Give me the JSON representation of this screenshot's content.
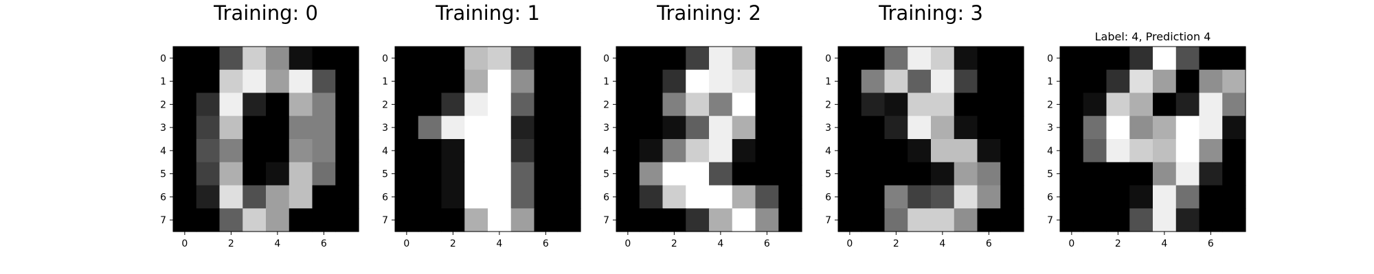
{
  "chart_data": [
    {
      "type": "heatmap",
      "title": "Training: 0",
      "colormap": "gray",
      "x_ticks": [
        0,
        2,
        4,
        6
      ],
      "y_ticks": [
        0,
        1,
        2,
        3,
        4,
        5,
        6,
        7
      ],
      "values": [
        [
          0,
          0,
          5,
          13,
          9,
          1,
          0,
          0
        ],
        [
          0,
          0,
          13,
          15,
          10,
          15,
          5,
          0
        ],
        [
          0,
          3,
          15,
          2,
          0,
          11,
          8,
          0
        ],
        [
          0,
          4,
          12,
          0,
          0,
          8,
          8,
          0
        ],
        [
          0,
          5,
          8,
          0,
          0,
          9,
          8,
          0
        ],
        [
          0,
          4,
          11,
          0,
          1,
          12,
          7,
          0
        ],
        [
          0,
          2,
          14,
          5,
          10,
          12,
          0,
          0
        ],
        [
          0,
          0,
          6,
          13,
          10,
          0,
          0,
          0
        ]
      ]
    },
    {
      "type": "heatmap",
      "title": "Training: 1",
      "colormap": "gray",
      "x_ticks": [
        0,
        2,
        4,
        6
      ],
      "y_ticks": [
        0,
        1,
        2,
        3,
        4,
        5,
        6,
        7
      ],
      "values": [
        [
          0,
          0,
          0,
          12,
          13,
          5,
          0,
          0
        ],
        [
          0,
          0,
          0,
          11,
          16,
          9,
          0,
          0
        ],
        [
          0,
          0,
          3,
          15,
          16,
          6,
          0,
          0
        ],
        [
          0,
          7,
          15,
          16,
          16,
          2,
          0,
          0
        ],
        [
          0,
          0,
          1,
          16,
          16,
          3,
          0,
          0
        ],
        [
          0,
          0,
          1,
          16,
          16,
          6,
          0,
          0
        ],
        [
          0,
          0,
          1,
          16,
          16,
          6,
          0,
          0
        ],
        [
          0,
          0,
          0,
          11,
          16,
          10,
          0,
          0
        ]
      ]
    },
    {
      "type": "heatmap",
      "title": "Training: 2",
      "colormap": "gray",
      "x_ticks": [
        0,
        2,
        4,
        6
      ],
      "y_ticks": [
        0,
        1,
        2,
        3,
        4,
        5,
        6,
        7
      ],
      "values": [
        [
          0,
          0,
          0,
          4,
          15,
          12,
          0,
          0
        ],
        [
          0,
          0,
          3,
          16,
          15,
          14,
          0,
          0
        ],
        [
          0,
          0,
          8,
          13,
          8,
          16,
          0,
          0
        ],
        [
          0,
          0,
          1,
          6,
          15,
          11,
          0,
          0
        ],
        [
          0,
          1,
          8,
          13,
          15,
          1,
          0,
          0
        ],
        [
          0,
          9,
          16,
          16,
          5,
          0,
          0,
          0
        ],
        [
          0,
          3,
          13,
          16,
          16,
          11,
          5,
          0
        ],
        [
          0,
          0,
          0,
          3,
          11,
          16,
          9,
          0
        ]
      ]
    },
    {
      "type": "heatmap",
      "title": "Training: 3",
      "colormap": "gray",
      "x_ticks": [
        0,
        2,
        4,
        6
      ],
      "y_ticks": [
        0,
        1,
        2,
        3,
        4,
        5,
        6,
        7
      ],
      "values": [
        [
          0,
          0,
          7,
          15,
          13,
          1,
          0,
          0
        ],
        [
          0,
          8,
          13,
          6,
          15,
          4,
          0,
          0
        ],
        [
          0,
          2,
          1,
          13,
          13,
          0,
          0,
          0
        ],
        [
          0,
          0,
          2,
          15,
          11,
          1,
          0,
          0
        ],
        [
          0,
          0,
          0,
          1,
          12,
          12,
          1,
          0
        ],
        [
          0,
          0,
          0,
          0,
          1,
          10,
          8,
          0
        ],
        [
          0,
          0,
          8,
          4,
          5,
          14,
          9,
          0
        ],
        [
          0,
          0,
          7,
          13,
          13,
          9,
          0,
          0
        ]
      ]
    },
    {
      "type": "heatmap",
      "title": "Label: 4, Prediction 4",
      "colormap": "gray",
      "x_ticks": [
        0,
        2,
        4,
        6
      ],
      "y_ticks": [
        0,
        1,
        2,
        3,
        4,
        5,
        6,
        7
      ],
      "values": [
        [
          0,
          0,
          0,
          3,
          16,
          5,
          0,
          0
        ],
        [
          0,
          0,
          3,
          14,
          10,
          0,
          9,
          11
        ],
        [
          0,
          1,
          13,
          11,
          0,
          2,
          15,
          8
        ],
        [
          0,
          7,
          16,
          9,
          11,
          16,
          15,
          1
        ],
        [
          0,
          6,
          15,
          13,
          12,
          16,
          9,
          0
        ],
        [
          0,
          0,
          0,
          0,
          9,
          15,
          2,
          0
        ],
        [
          0,
          0,
          0,
          1,
          15,
          7,
          0,
          0
        ],
        [
          0,
          0,
          0,
          5,
          15,
          2,
          0,
          0
        ]
      ]
    }
  ]
}
